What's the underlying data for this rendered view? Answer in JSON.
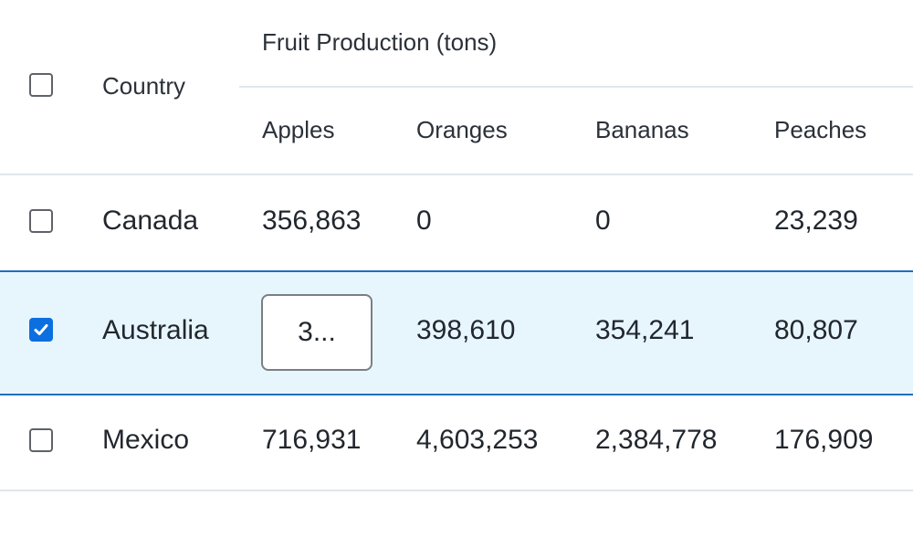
{
  "header": {
    "group_label": "Fruit Production (tons)",
    "country_label": "Country",
    "columns": [
      "Apples",
      "Oranges",
      "Bananas",
      "Peaches"
    ]
  },
  "rows": [
    {
      "country": "Canada",
      "apples": "356,863",
      "oranges": "0",
      "bananas": "0",
      "peaches": "23,239",
      "selected": false
    },
    {
      "country": "Australia",
      "apples": "3...",
      "oranges": "398,610",
      "bananas": "354,241",
      "peaches": "80,807",
      "selected": true,
      "editing": "apples"
    },
    {
      "country": "Mexico",
      "apples": "716,931",
      "oranges": "4,603,253",
      "bananas": "2,384,778",
      "peaches": "176,909",
      "selected": false
    }
  ],
  "colors": {
    "selection_background": "#e7f6fd",
    "selection_border": "#1e6fba",
    "checkbox_checked": "#0b6fe0",
    "gridline": "#e1e6ec"
  }
}
